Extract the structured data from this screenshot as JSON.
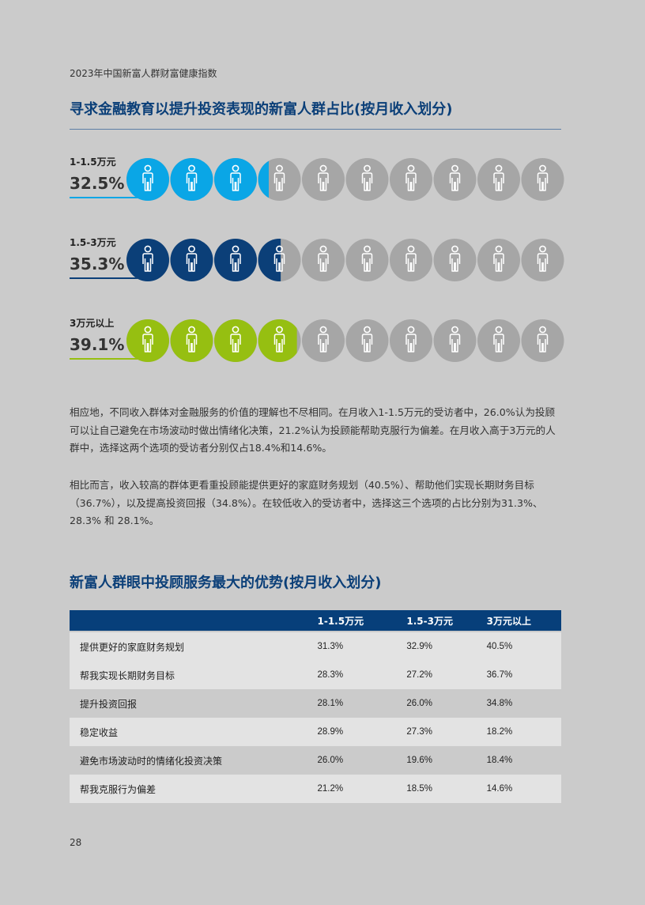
{
  "header": "2023年中国新富人群财富健康指数",
  "section1": {
    "title": "寻求金融教育以提升投资表现的新富人群占比(按月收入划分)",
    "groups": [
      {
        "label": "1-1.5万元",
        "value": "32.5%",
        "percent": 32.5,
        "color": "#0aa6e6"
      },
      {
        "label": "1.5-3万元",
        "value": "35.3%",
        "percent": 35.3,
        "color": "#0b3f78"
      },
      {
        "label": "3万元以上",
        "value": "39.1%",
        "percent": 39.1,
        "color": "#96bf11"
      }
    ],
    "icon_total": 10,
    "icon_rest_color": "#a6a6a6"
  },
  "paragraphs": [
    "相应地，不同收入群体对金融服务的价值的理解也不尽相同。在月收入1-1.5万元的受访者中，26.0%认为投顾可以让自己避免在市场波动时做出情绪化决策，21.2%认为投顾能帮助克服行为偏差。在月收入高于3万元的人群中，选择这两个选项的受访者分别仅占18.4%和14.6%。",
    "相比而言，收入较高的群体更看重投顾能提供更好的家庭财务规划（40.5%）、帮助他们实现长期财务目标（36.7%），以及提高投资回报（34.8%）。在较低收入的受访者中，选择这三个选项的占比分别为31.3%、28.3% 和 28.1%。"
  ],
  "section2": {
    "title": "新富人群眼中投顾服务最大的优势(按月收入划分)",
    "columns": [
      "",
      "1-1.5万元",
      "1.5-3万元",
      "3万元以上"
    ],
    "rows": [
      [
        "提供更好的家庭财务规划",
        "31.3%",
        "32.9%",
        "40.5%"
      ],
      [
        "帮我实现长期财务目标",
        "28.3%",
        "27.2%",
        "36.7%"
      ],
      [
        "提升投资回报",
        "28.1%",
        "26.0%",
        "34.8%"
      ],
      [
        "稳定收益",
        "28.9%",
        "27.3%",
        "18.2%"
      ],
      [
        "避免市场波动时的情绪化投资决策",
        "26.0%",
        "19.6%",
        "18.4%"
      ],
      [
        "帮我克服行为偏差",
        "21.2%",
        "18.5%",
        "14.6%"
      ]
    ]
  },
  "page_number": "28"
}
